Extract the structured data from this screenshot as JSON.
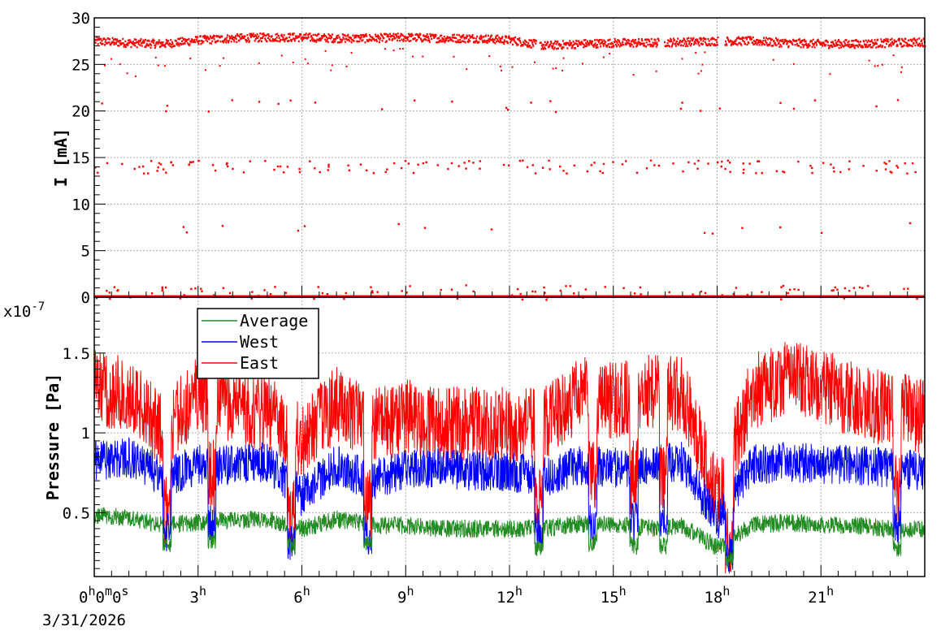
{
  "chart_data": [
    {
      "type": "scatter",
      "title": "",
      "ylabel": "I [mA]",
      "ylim": [
        0,
        30
      ],
      "yticks": [
        "0",
        "5",
        "10",
        "15",
        "20",
        "25",
        "30"
      ],
      "xlim_hours": [
        0,
        24
      ],
      "grid": true,
      "series": [
        {
          "color": "#ff0000",
          "main_band": {
            "x_hours": [
              0,
              1,
              2,
              3,
              4,
              5,
              6,
              7,
              8,
              9,
              10,
              11,
              12,
              13,
              14,
              15,
              16,
              17,
              18,
              19,
              20,
              21,
              22,
              23,
              24
            ],
            "y": [
              27.5,
              27.3,
              27.2,
              27.6,
              27.8,
              27.9,
              27.9,
              27.8,
              27.8,
              27.9,
              27.8,
              27.8,
              27.6,
              27.0,
              27.2,
              27.3,
              27.3,
              27.4,
              27.5,
              27.5,
              27.3,
              27.2,
              27.2,
              27.3,
              27.4
            ]
          },
          "outlier_levels_mA": [
            0.5,
            7.5,
            14,
            20.5,
            27.5
          ]
        }
      ]
    },
    {
      "type": "line",
      "title": "",
      "ylabel": "Pressure [Pa]",
      "exponent_label": "x10",
      "exponent_power": "-7",
      "ylim": [
        0.1,
        1.85
      ],
      "yticks": [
        "0.5",
        "1",
        "1.5"
      ],
      "xlim_hours": [
        0,
        24
      ],
      "grid": true,
      "legend_position": "top-left",
      "series": [
        {
          "name": "Average",
          "color": "#228b22",
          "x_hours": [
            0,
            1,
            2,
            3,
            4,
            5,
            6,
            7,
            8,
            9,
            10,
            11,
            12,
            13,
            14,
            15,
            16,
            17,
            18,
            19,
            20,
            21,
            22,
            23,
            24
          ],
          "y": [
            0.48,
            0.47,
            0.42,
            0.44,
            0.45,
            0.46,
            0.4,
            0.46,
            0.42,
            0.42,
            0.4,
            0.4,
            0.4,
            0.4,
            0.43,
            0.43,
            0.4,
            0.42,
            0.28,
            0.42,
            0.44,
            0.42,
            0.42,
            0.4,
            0.4
          ]
        },
        {
          "name": "West",
          "color": "#0000ff",
          "x_hours": [
            0,
            1,
            2,
            3,
            4,
            5,
            6,
            7,
            8,
            9,
            10,
            11,
            12,
            13,
            14,
            15,
            16,
            17,
            18,
            19,
            20,
            21,
            22,
            23,
            24
          ],
          "y": [
            0.82,
            0.85,
            0.72,
            0.8,
            0.8,
            0.82,
            0.6,
            0.8,
            0.7,
            0.78,
            0.78,
            0.76,
            0.76,
            0.72,
            0.8,
            0.78,
            0.8,
            0.82,
            0.45,
            0.8,
            0.82,
            0.8,
            0.8,
            0.78,
            0.76
          ]
        },
        {
          "name": "East",
          "color": "#ff0000",
          "x_hours": [
            0,
            1,
            2,
            3,
            4,
            5,
            6,
            7,
            8,
            9,
            10,
            11,
            12,
            13,
            14,
            15,
            16,
            17,
            18,
            19,
            20,
            21,
            22,
            23,
            24
          ],
          "y": [
            1.28,
            1.25,
            1.0,
            1.25,
            1.18,
            1.12,
            0.95,
            1.18,
            1.05,
            1.1,
            1.05,
            1.05,
            1.05,
            1.05,
            1.25,
            1.2,
            1.25,
            1.25,
            0.6,
            1.25,
            1.35,
            1.3,
            1.2,
            1.15,
            1.1
          ]
        }
      ],
      "xaxis": {
        "tick_labels": [
          {
            "hour": 3,
            "base": "3",
            "sup": "h"
          },
          {
            "hour": 6,
            "base": "6",
            "sup": "h"
          },
          {
            "hour": 9,
            "base": "9",
            "sup": "h"
          },
          {
            "hour": 12,
            "base": "12",
            "sup": "h"
          },
          {
            "hour": 15,
            "base": "15",
            "sup": "h"
          },
          {
            "hour": 18,
            "base": "18",
            "sup": "h"
          },
          {
            "hour": 21,
            "base": "21",
            "sup": "h"
          }
        ],
        "origin_label": {
          "parts": [
            {
              "base": "0",
              "sup": "h"
            },
            {
              "base": "0",
              "sup": "m"
            },
            {
              "base": "0",
              "sup": "s"
            }
          ],
          "date": "3/31/2026"
        }
      }
    }
  ]
}
